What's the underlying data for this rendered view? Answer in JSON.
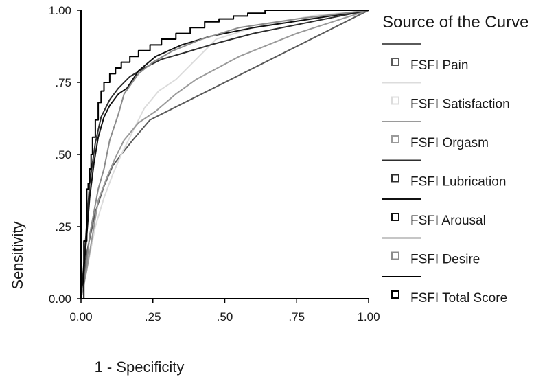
{
  "chart_data": {
    "type": "line",
    "xlabel": "1 - Specificity",
    "ylabel": "Sensitivity",
    "xlim": [
      0,
      1
    ],
    "ylim": [
      0,
      1
    ],
    "x_ticks": [
      "0.00",
      ".25",
      ".50",
      ".75",
      "1.00"
    ],
    "y_ticks": [
      "0.00",
      ".25",
      ".50",
      ".75",
      "1.00"
    ],
    "x_tick_values": [
      0,
      0.25,
      0.5,
      0.75,
      1
    ],
    "y_tick_values": [
      0,
      0.25,
      0.5,
      0.75,
      1
    ],
    "grid": false,
    "legend": {
      "title": "Source of the Curve",
      "position": "right"
    },
    "series": [
      {
        "name": "FSFI Pain",
        "color": "#5a5a5a",
        "points": [
          [
            0,
            0
          ],
          [
            0.01,
            0.06
          ],
          [
            0.02,
            0.16
          ],
          [
            0.05,
            0.3
          ],
          [
            0.08,
            0.39
          ],
          [
            0.11,
            0.46
          ],
          [
            0.14,
            0.5
          ],
          [
            0.18,
            0.55
          ],
          [
            0.24,
            0.62
          ],
          [
            1,
            1
          ]
        ]
      },
      {
        "name": "FSFI Satisfaction",
        "color": "#dcdcdc",
        "points": [
          [
            0,
            0
          ],
          [
            0.02,
            0.1
          ],
          [
            0.05,
            0.25
          ],
          [
            0.08,
            0.35
          ],
          [
            0.11,
            0.43
          ],
          [
            0.14,
            0.5
          ],
          [
            0.18,
            0.58
          ],
          [
            0.22,
            0.66
          ],
          [
            0.27,
            0.72
          ],
          [
            0.33,
            0.76
          ],
          [
            0.4,
            0.83
          ],
          [
            0.47,
            0.9
          ],
          [
            0.6,
            0.94
          ],
          [
            0.8,
            0.98
          ],
          [
            1,
            1
          ]
        ]
      },
      {
        "name": "FSFI Orgasm",
        "color": "#9a9a9a",
        "points": [
          [
            0,
            0
          ],
          [
            0.02,
            0.1
          ],
          [
            0.04,
            0.22
          ],
          [
            0.06,
            0.34
          ],
          [
            0.09,
            0.42
          ],
          [
            0.12,
            0.49
          ],
          [
            0.15,
            0.55
          ],
          [
            0.2,
            0.61
          ],
          [
            0.26,
            0.65
          ],
          [
            0.33,
            0.71
          ],
          [
            0.4,
            0.76
          ],
          [
            0.55,
            0.84
          ],
          [
            0.75,
            0.92
          ],
          [
            1,
            1
          ]
        ]
      },
      {
        "name": "FSFI Lubrication",
        "color": "#2e2e2e",
        "points": [
          [
            0,
            0
          ],
          [
            0.01,
            0.12
          ],
          [
            0.02,
            0.26
          ],
          [
            0.03,
            0.4
          ],
          [
            0.05,
            0.54
          ],
          [
            0.07,
            0.63
          ],
          [
            0.1,
            0.69
          ],
          [
            0.13,
            0.73
          ],
          [
            0.17,
            0.77
          ],
          [
            0.22,
            0.8
          ],
          [
            0.28,
            0.83
          ],
          [
            0.35,
            0.85
          ],
          [
            0.45,
            0.88
          ],
          [
            0.6,
            0.92
          ],
          [
            0.8,
            0.96
          ],
          [
            1,
            1
          ]
        ]
      },
      {
        "name": "FSFI Arousal",
        "color": "#111111",
        "points": [
          [
            0,
            0
          ],
          [
            0.01,
            0.1
          ],
          [
            0.02,
            0.22
          ],
          [
            0.03,
            0.35
          ],
          [
            0.045,
            0.47
          ],
          [
            0.06,
            0.56
          ],
          [
            0.08,
            0.63
          ],
          [
            0.1,
            0.67
          ],
          [
            0.13,
            0.71
          ],
          [
            0.16,
            0.73
          ],
          [
            0.2,
            0.79
          ],
          [
            0.26,
            0.84
          ],
          [
            0.35,
            0.88
          ],
          [
            0.45,
            0.91
          ],
          [
            0.6,
            0.94
          ],
          [
            0.8,
            0.97
          ],
          [
            1,
            1
          ]
        ]
      },
      {
        "name": "FSFI Desire",
        "color": "#8c8c8c",
        "points": [
          [
            0,
            0
          ],
          [
            0.01,
            0.05
          ],
          [
            0.02,
            0.12
          ],
          [
            0.03,
            0.22
          ],
          [
            0.06,
            0.38
          ],
          [
            0.08,
            0.45
          ],
          [
            0.1,
            0.55
          ],
          [
            0.13,
            0.64
          ],
          [
            0.15,
            0.71
          ],
          [
            0.2,
            0.78
          ],
          [
            0.25,
            0.82
          ],
          [
            0.32,
            0.86
          ],
          [
            0.42,
            0.9
          ],
          [
            0.55,
            0.94
          ],
          [
            0.75,
            0.97
          ],
          [
            1,
            1
          ]
        ]
      },
      {
        "name": "FSFI Total Score",
        "color": "#000000",
        "step": true,
        "points": [
          [
            0,
            0
          ],
          [
            0.01,
            0.12
          ],
          [
            0.01,
            0.2
          ],
          [
            0.02,
            0.26
          ],
          [
            0.02,
            0.38
          ],
          [
            0.025,
            0.4
          ],
          [
            0.03,
            0.45
          ],
          [
            0.035,
            0.5
          ],
          [
            0.04,
            0.56
          ],
          [
            0.05,
            0.62
          ],
          [
            0.06,
            0.68
          ],
          [
            0.07,
            0.72
          ],
          [
            0.08,
            0.75
          ],
          [
            0.1,
            0.78
          ],
          [
            0.12,
            0.8
          ],
          [
            0.14,
            0.82
          ],
          [
            0.17,
            0.84
          ],
          [
            0.2,
            0.86
          ],
          [
            0.24,
            0.88
          ],
          [
            0.28,
            0.9
          ],
          [
            0.33,
            0.92
          ],
          [
            0.38,
            0.94
          ],
          [
            0.43,
            0.96
          ],
          [
            0.48,
            0.97
          ],
          [
            0.53,
            0.98
          ],
          [
            0.58,
            0.99
          ],
          [
            0.64,
            1.0
          ],
          [
            1,
            1
          ]
        ]
      }
    ]
  }
}
